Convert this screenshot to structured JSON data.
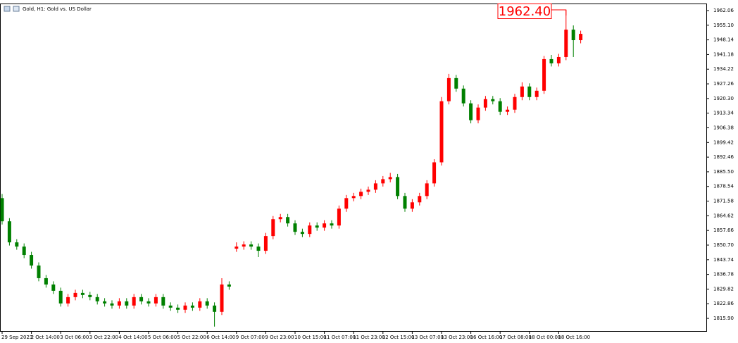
{
  "chart_data": {
    "type": "candlestick",
    "title": "Gold, H1:  Gold vs. US Dollar",
    "up_color": "#ff0000",
    "down_color": "#008000",
    "ylim": [
      1809.9,
      1965.4
    ],
    "yticks": [
      1962.06,
      {
        "value": 1955.1,
        "label": "1955.10"
      },
      1948.14,
      1941.18,
      1934.22,
      1927.26,
      {
        "value": 1920.3,
        "label": "1920.30"
      },
      1913.34,
      1906.38,
      1899.42,
      1892.46,
      {
        "value": 1885.5,
        "label": "1885.50"
      },
      1878.54,
      1871.58,
      1864.62,
      1857.66,
      {
        "value": 1850.7,
        "label": "1850.70"
      },
      1843.74,
      1836.78,
      1829.82,
      1822.86,
      {
        "value": 1815.9,
        "label": "1815.90"
      }
    ],
    "annotation": {
      "value": 1962.4,
      "label": "1962.40"
    },
    "categories": [
      "29 Sep 2023",
      null,
      null,
      null,
      "2 Oct 14:00",
      null,
      null,
      null,
      "3 Oct 06:00",
      null,
      null,
      null,
      "3 Oct 22:00",
      null,
      null,
      null,
      "4 Oct 14:00",
      null,
      null,
      null,
      "5 Oct 06:00",
      null,
      null,
      null,
      "5 Oct 22:00",
      null,
      null,
      null,
      "6 Oct 14:00",
      null,
      null,
      null,
      "9 Oct 07:00",
      null,
      null,
      null,
      "9 Oct 23:00",
      null,
      null,
      null,
      "10 Oct 15:00",
      null,
      null,
      null,
      "11 Oct 07:00",
      null,
      null,
      null,
      "11 Oct 23:00",
      null,
      null,
      null,
      "12 Oct 15:00",
      null,
      null,
      null,
      "13 Oct 07:00",
      null,
      null,
      null,
      "13 Oct 23:00",
      null,
      null,
      null,
      "16 Oct 16:00",
      null,
      null,
      null,
      "17 Oct 08:00",
      null,
      null,
      null,
      "18 Oct 00:00",
      null,
      null,
      null,
      "18 Oct 16:00",
      null,
      null,
      null
    ],
    "open": [
      1873,
      1862,
      1852,
      1850,
      1846,
      1841,
      1835,
      1832,
      1829,
      1823,
      1826,
      1828,
      1827,
      1826,
      1824,
      1823,
      1822,
      1824,
      1822,
      1826,
      1824,
      1823,
      1826,
      1822,
      1821,
      1820,
      1822,
      1821,
      1824,
      1822,
      1819,
      1832,
      1849,
      1850,
      1851,
      1850,
      1848,
      1855,
      1863,
      1864,
      1861,
      1857,
      1856,
      1860,
      1859,
      1861,
      1860,
      1868,
      1873,
      1874,
      1876,
      1877,
      1880,
      1882,
      1883,
      1874,
      1868,
      1871,
      1874,
      1880,
      1890,
      1919,
      1930,
      1925,
      1918,
      1910,
      1916,
      1920,
      1919,
      1914,
      1915,
      1921,
      1926,
      1921,
      1924,
      1939,
      1937,
      1940,
      1953,
      1948
    ],
    "high": [
      1875,
      1863.5,
      1853.5,
      1851.5,
      1847.5,
      1842.5,
      1836.5,
      1833.5,
      1830.5,
      1827.5,
      1829.5,
      1829.5,
      1828.5,
      1827.5,
      1825.5,
      1824.5,
      1825.5,
      1825.5,
      1827.5,
      1827.5,
      1825.5,
      1827.5,
      1827.5,
      1823.5,
      1822.5,
      1823.5,
      1823.5,
      1825.5,
      1825.5,
      1823.5,
      1835,
      1833.5,
      1852,
      1852.5,
      1852.5,
      1851.5,
      1856.5,
      1864.5,
      1865.5,
      1865.5,
      1862.5,
      1858.5,
      1861.5,
      1861.5,
      1862.5,
      1862.5,
      1869.5,
      1874.5,
      1875.5,
      1877.5,
      1878.5,
      1881.5,
      1883.5,
      1885,
      1884.5,
      1875.5,
      1872.5,
      1875.5,
      1881.5,
      1891.5,
      1921,
      1932,
      1931.5,
      1926.5,
      1919.5,
      1917.5,
      1921.5,
      1921.5,
      1920.5,
      1916.5,
      1922.5,
      1928,
      1927.5,
      1925.5,
      1940.5,
      1941,
      1941.5,
      1962.4,
      1955,
      1952.5
    ],
    "low": [
      1860.5,
      1850.5,
      1848.5,
      1844.5,
      1839.5,
      1833.5,
      1830.5,
      1827.5,
      1821.5,
      1821.5,
      1824.5,
      1825.5,
      1824.5,
      1822.5,
      1821.5,
      1820.5,
      1820.5,
      1820.5,
      1820.5,
      1822.5,
      1821.5,
      1821.5,
      1820.5,
      1819.5,
      1818.5,
      1818.5,
      1819.5,
      1819.5,
      1820.5,
      1812,
      1817.5,
      1829.5,
      1847.5,
      1848.5,
      1848.5,
      1845,
      1846.5,
      1853.5,
      1861.5,
      1859.5,
      1855.5,
      1854.5,
      1854.5,
      1857.5,
      1857.5,
      1858.5,
      1858.5,
      1866.5,
      1871.5,
      1872.5,
      1874.5,
      1875.5,
      1878.5,
      1880.5,
      1872.5,
      1866.5,
      1866.5,
      1869.5,
      1872.5,
      1878.5,
      1888.5,
      1917.5,
      1923.5,
      1916.5,
      1908.5,
      1908.5,
      1914.5,
      1917.5,
      1912.5,
      1912.5,
      1913.5,
      1919.5,
      1919.5,
      1919.5,
      1922.5,
      1935.5,
      1935.5,
      1938.5,
      1940,
      1946.5
    ],
    "close": [
      1862,
      1852,
      1850,
      1846,
      1841,
      1835,
      1832,
      1829,
      1823,
      1826,
      1828,
      1827,
      1826,
      1824,
      1823,
      1822,
      1824,
      1822,
      1826,
      1824,
      1823,
      1826,
      1822,
      1821,
      1820,
      1822,
      1821,
      1824,
      1822,
      1819,
      1832,
      1831,
      1850,
      1851,
      1850,
      1848,
      1855,
      1863,
      1864,
      1861,
      1857,
      1856,
      1860,
      1859,
      1861,
      1860,
      1868,
      1873,
      1874,
      1876,
      1877,
      1880,
      1882,
      1883,
      1874,
      1868,
      1871,
      1874,
      1880,
      1890,
      1919,
      1930,
      1925,
      1918,
      1910,
      1916,
      1920,
      1919,
      1914,
      1915,
      1921,
      1926,
      1921,
      1924,
      1939,
      1937,
      1940,
      1953,
      1948,
      1951
    ]
  }
}
